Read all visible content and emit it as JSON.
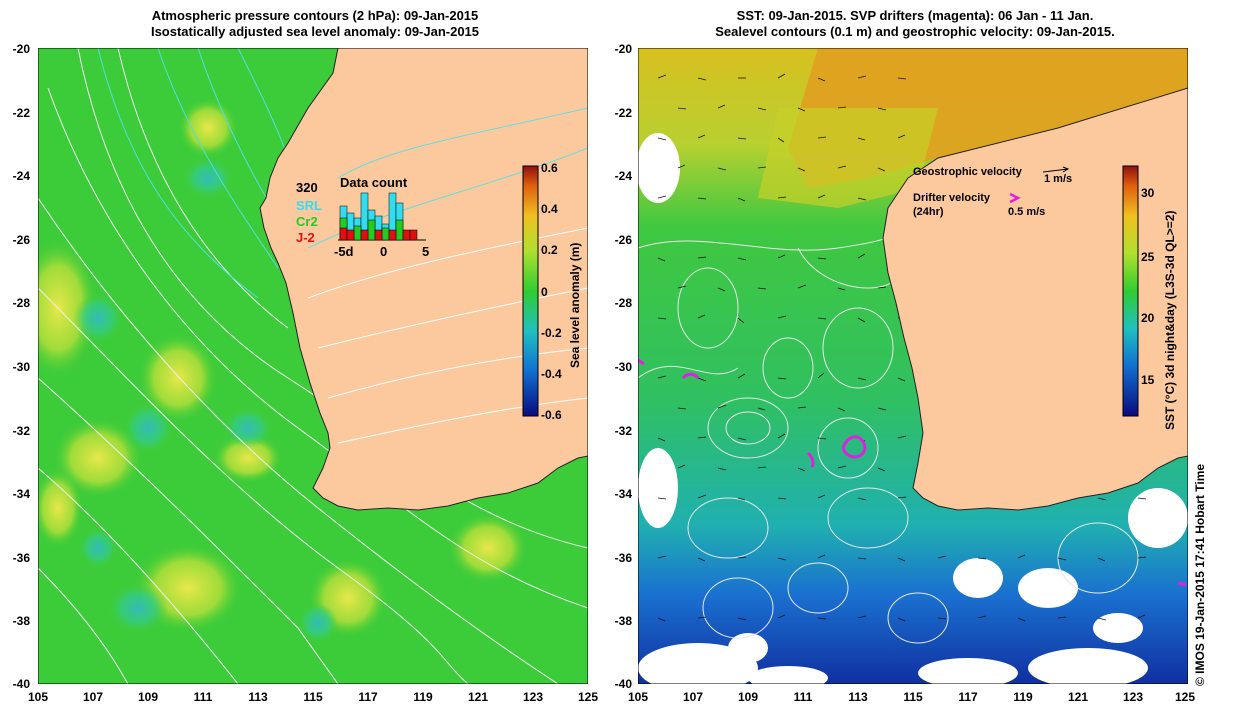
{
  "left_panel": {
    "title_line1": "Atmospheric pressure contours (2 hPa): 09-Jan-2015",
    "title_line2": "Isostatically adjusted sea level anomaly: 09-Jan-2015",
    "y_ticks": [
      "-20",
      "-22",
      "-24",
      "-26",
      "-28",
      "-30",
      "-32",
      "-34",
      "-36",
      "-38",
      "-40"
    ],
    "x_ticks": [
      "105",
      "107",
      "109",
      "111",
      "113",
      "115",
      "117",
      "119",
      "121",
      "123",
      "125"
    ],
    "colorbar": {
      "label": "Sea level anomaly (m)",
      "ticks": [
        "0.6",
        "0.4",
        "0.2",
        "0",
        "-0.2",
        "-0.4",
        "-0.6"
      ]
    },
    "data_count": {
      "title": "Data count",
      "max_label": "320",
      "series": [
        "SRL",
        "Cr2",
        "J-2"
      ],
      "series_colors": [
        "#33ddee",
        "#22cc22",
        "#dd1111"
      ],
      "axis_labels": [
        "-5d",
        "0",
        "5"
      ]
    }
  },
  "right_panel": {
    "title_line1": "SST: 09-Jan-2015. SVP drifters (magenta): 06 Jan - 11 Jan.",
    "title_line2": "Sealevel contours (0.1 m) and geostrophic velocity: 09-Jan-2015.",
    "y_ticks": [
      "-20",
      "-22",
      "-24",
      "-26",
      "-28",
      "-30",
      "-32",
      "-34",
      "-36",
      "-38",
      "-40"
    ],
    "x_ticks": [
      "105",
      "107",
      "109",
      "111",
      "113",
      "115",
      "117",
      "119",
      "121",
      "123",
      "125"
    ],
    "colorbar": {
      "label": "SST (°C) 3d night&day (L3S-3d QL>=2)",
      "ticks": [
        "30",
        "25",
        "20",
        "15"
      ]
    },
    "legend": {
      "geostrophic": "Geostrophic velocity",
      "geostrophic_scale": "1 m/s",
      "drifter": "Drifter velocity",
      "drifter_period": "(24hr)",
      "drifter_scale": "0.5 m/s"
    },
    "copyright": "© IMOS 19-Jan-2015 17:41 Hobart Time"
  },
  "colors": {
    "land": "#fcc99f",
    "ocean_mid": "#33cc33",
    "drifter": "#e020e0"
  }
}
